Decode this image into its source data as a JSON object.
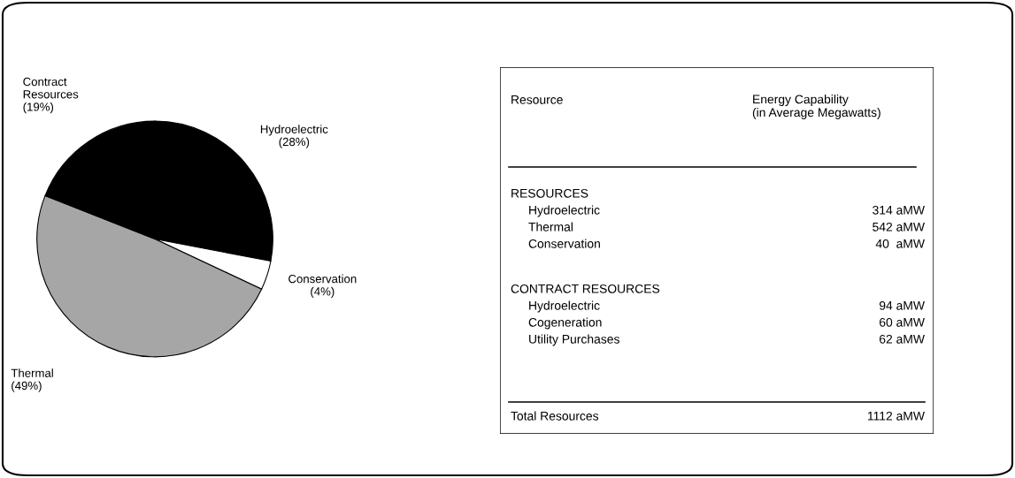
{
  "chart_data": [
    {
      "type": "pie",
      "categories": [
        "Hydroelectric",
        "Conservation",
        "Thermal",
        "Contract\nResources"
      ],
      "values": [
        28,
        4,
        49,
        19
      ],
      "colors": [
        "#000000",
        "#ffffff",
        "#a6a6a6",
        "#000000"
      ],
      "value_labels": [
        "(28%)",
        "(4%)",
        "(49%)",
        "(19%)"
      ]
    },
    {
      "type": "other",
      "annotations": [
        "Resource",
        "Energy Capability\n(in Average Megawatts)",
        "RESOURCES",
        "Hydroelectric",
        "314 aMW",
        "Thermal",
        "542 aMW",
        "Conservation",
        "40  aMW",
        "CONTRACT RESOURCES",
        "Hydroelectric",
        "94 aMW",
        "Cogeneration",
        "60 aMW",
        "Utility Purchases",
        "62 aMW",
        "Total Resources",
        "1112 aMW"
      ]
    }
  ]
}
